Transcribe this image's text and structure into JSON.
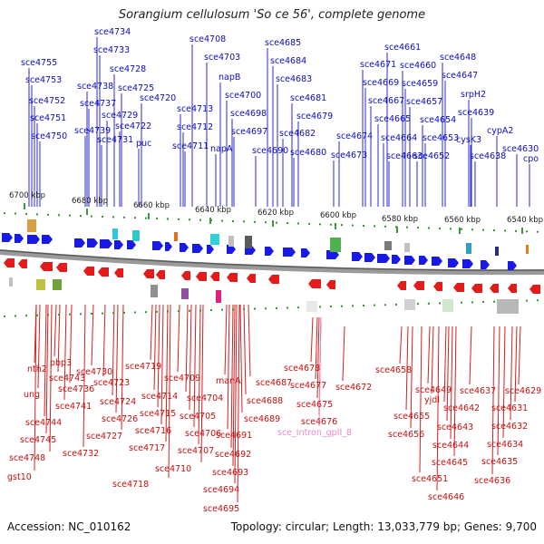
{
  "title": "Sorangium cellulosum 'So ce 56', complete genome",
  "accession_label": "Accession: NC_010162",
  "summary_label": "Topology: circular; Length: 13,033,779 bp; Genes: 9,700",
  "ticks": [
    "6700 kbp",
    "6680 kbp",
    "6660 kbp",
    "6640 kbp",
    "6620 kbp",
    "6600 kbp",
    "6580 kbp",
    "6560 kbp",
    "6540 kbp"
  ],
  "top_labels": [
    "sce4755",
    "sce4753",
    "sce4752",
    "sce4751",
    "sce4750",
    "sce4734",
    "sce4733",
    "sce4738",
    "sce4737",
    "sce4739",
    "sce4731",
    "sce4728",
    "sce4725",
    "sce4729",
    "sce4722",
    "sce4720",
    "puc",
    "sce4708",
    "sce4703",
    "sce4713",
    "sce4712",
    "sce4711",
    "napB",
    "sce4700",
    "sce4698",
    "sce4697",
    "napA",
    "sce4685",
    "sce4684",
    "sce4683",
    "sce4681",
    "sce4679",
    "sce4682",
    "sce4680",
    "sce4690",
    "sce4671",
    "sce4674",
    "sce4673",
    "sce4669",
    "sce4667",
    "sce4665",
    "sce4664",
    "sce4663",
    "sce4661",
    "sce4660",
    "sce4659",
    "sce4657",
    "sce4654",
    "sce4653",
    "sce4652",
    "sce4648",
    "sce4647",
    "srpH2",
    "sce4639",
    "cysK3",
    "sce4638",
    "cypA2",
    "sce4630",
    "cpo"
  ],
  "bottom_labels": [
    "nth2",
    "ung",
    "sce4744",
    "sce4745",
    "sce4748",
    "gst10",
    "pbp3",
    "sce4743",
    "sce4741",
    "sce4736",
    "sce4732",
    "sce4730",
    "sce4723",
    "sce4724",
    "sce4726",
    "sce4727",
    "sce4719",
    "sce4714",
    "sce4715",
    "sce4716",
    "sce4717",
    "sce4718",
    "sce4709",
    "sce4704",
    "sce4705",
    "sce4706",
    "sce4707",
    "sce4710",
    "manA",
    "sce4691",
    "sce4692",
    "sce4693",
    "sce4694",
    "sce4695",
    "sce4687",
    "sce4688",
    "sce4689",
    "sce4678",
    "sce4677",
    "sce4675",
    "sce4676",
    "sce_Intron_gpII_8",
    "sce4672",
    "sce4658",
    "sce4655",
    "sce4656",
    "sce4649",
    "yjdI",
    "sce4651",
    "sce4646",
    "sce4642",
    "sce4643",
    "sce4644",
    "sce4645",
    "sce4637",
    "sce4629",
    "sce4631",
    "sce4632",
    "sce4634",
    "sce4635",
    "sce4636"
  ]
}
